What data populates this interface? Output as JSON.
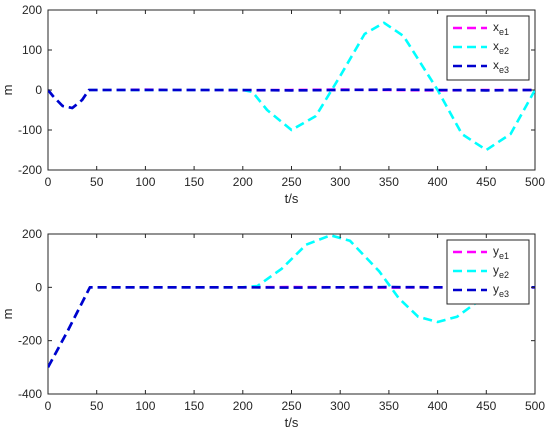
{
  "chart_data": [
    {
      "type": "line",
      "xlabel": "t/s",
      "ylabel": "m",
      "xlim": [
        0,
        500
      ],
      "ylim": [
        -200,
        200
      ],
      "x_ticks": [
        "0",
        "50",
        "100",
        "150",
        "200",
        "250",
        "300",
        "350",
        "400",
        "450",
        "500"
      ],
      "y_ticks": [
        "200",
        "100",
        "0",
        "-100",
        "-200"
      ],
      "grid": false,
      "legend_position": "top-right",
      "series": [
        {
          "name": "x",
          "subscript": "e1",
          "color": "#ff00ff",
          "dash": "dashed",
          "points": [
            [
              0,
              0
            ],
            [
              5,
              -15
            ],
            [
              15,
              -40
            ],
            [
              25,
              -45
            ],
            [
              35,
              -25
            ],
            [
              42,
              0
            ],
            [
              50,
              0
            ],
            [
              100,
              1
            ],
            [
              150,
              0
            ],
            [
              200,
              -1
            ],
            [
              250,
              0
            ],
            [
              300,
              1
            ],
            [
              350,
              0
            ],
            [
              400,
              -1
            ],
            [
              450,
              0
            ],
            [
              500,
              0
            ]
          ]
        },
        {
          "name": "x",
          "subscript": "e2",
          "color": "#00ffff",
          "dash": "dashed",
          "points": [
            [
              0,
              0
            ],
            [
              5,
              -15
            ],
            [
              15,
              -40
            ],
            [
              25,
              -45
            ],
            [
              35,
              -25
            ],
            [
              42,
              0
            ],
            [
              50,
              0
            ],
            [
              100,
              0
            ],
            [
              150,
              0
            ],
            [
              200,
              0
            ],
            [
              210,
              -5
            ],
            [
              225,
              -50
            ],
            [
              250,
              -100
            ],
            [
              275,
              -65
            ],
            [
              300,
              35
            ],
            [
              325,
              140
            ],
            [
              345,
              168
            ],
            [
              365,
              135
            ],
            [
              400,
              0
            ],
            [
              425,
              -110
            ],
            [
              450,
              -150
            ],
            [
              475,
              -110
            ],
            [
              500,
              0
            ]
          ]
        },
        {
          "name": "x",
          "subscript": "e3",
          "color": "#0000cd",
          "dash": "dashed",
          "points": [
            [
              0,
              0
            ],
            [
              5,
              -15
            ],
            [
              15,
              -40
            ],
            [
              25,
              -45
            ],
            [
              35,
              -25
            ],
            [
              42,
              0
            ],
            [
              50,
              0
            ],
            [
              100,
              0
            ],
            [
              150,
              0
            ],
            [
              200,
              0
            ],
            [
              250,
              -1
            ],
            [
              300,
              0
            ],
            [
              350,
              1
            ],
            [
              400,
              0
            ],
            [
              450,
              -1
            ],
            [
              500,
              0
            ]
          ]
        }
      ]
    },
    {
      "type": "line",
      "xlabel": "t/s",
      "ylabel": "m",
      "xlim": [
        0,
        500
      ],
      "ylim": [
        -400,
        200
      ],
      "x_ticks": [
        "0",
        "50",
        "100",
        "150",
        "200",
        "250",
        "300",
        "350",
        "400",
        "450",
        "500"
      ],
      "y_ticks": [
        "200",
        "0",
        "-200",
        "-400"
      ],
      "grid": false,
      "legend_position": "top-right",
      "series": [
        {
          "name": "y",
          "subscript": "e1",
          "color": "#ff00ff",
          "dash": "dashed",
          "points": [
            [
              0,
              -300
            ],
            [
              20,
              -165
            ],
            [
              43,
              0
            ],
            [
              50,
              0
            ],
            [
              100,
              0
            ],
            [
              150,
              0
            ],
            [
              200,
              0
            ],
            [
              250,
              1
            ],
            [
              300,
              0
            ],
            [
              350,
              -1
            ],
            [
              400,
              0
            ],
            [
              450,
              0
            ],
            [
              500,
              0
            ]
          ]
        },
        {
          "name": "y",
          "subscript": "e2",
          "color": "#00ffff",
          "dash": "dashed",
          "points": [
            [
              0,
              -300
            ],
            [
              20,
              -165
            ],
            [
              43,
              0
            ],
            [
              50,
              0
            ],
            [
              100,
              0
            ],
            [
              150,
              0
            ],
            [
              200,
              0
            ],
            [
              215,
              5
            ],
            [
              240,
              70
            ],
            [
              265,
              160
            ],
            [
              290,
              195
            ],
            [
              310,
              175
            ],
            [
              340,
              60
            ],
            [
              360,
              -40
            ],
            [
              380,
              -110
            ],
            [
              400,
              -130
            ],
            [
              420,
              -110
            ],
            [
              450,
              -30
            ],
            [
              475,
              70
            ],
            [
              495,
              160
            ]
          ]
        },
        {
          "name": "y",
          "subscript": "e3",
          "color": "#0000cd",
          "dash": "dashed",
          "points": [
            [
              0,
              -300
            ],
            [
              20,
              -165
            ],
            [
              43,
              0
            ],
            [
              50,
              0
            ],
            [
              100,
              0
            ],
            [
              150,
              0
            ],
            [
              200,
              0
            ],
            [
              250,
              -1
            ],
            [
              300,
              0
            ],
            [
              350,
              1
            ],
            [
              400,
              0
            ],
            [
              450,
              -1
            ],
            [
              500,
              0
            ]
          ]
        }
      ]
    }
  ]
}
